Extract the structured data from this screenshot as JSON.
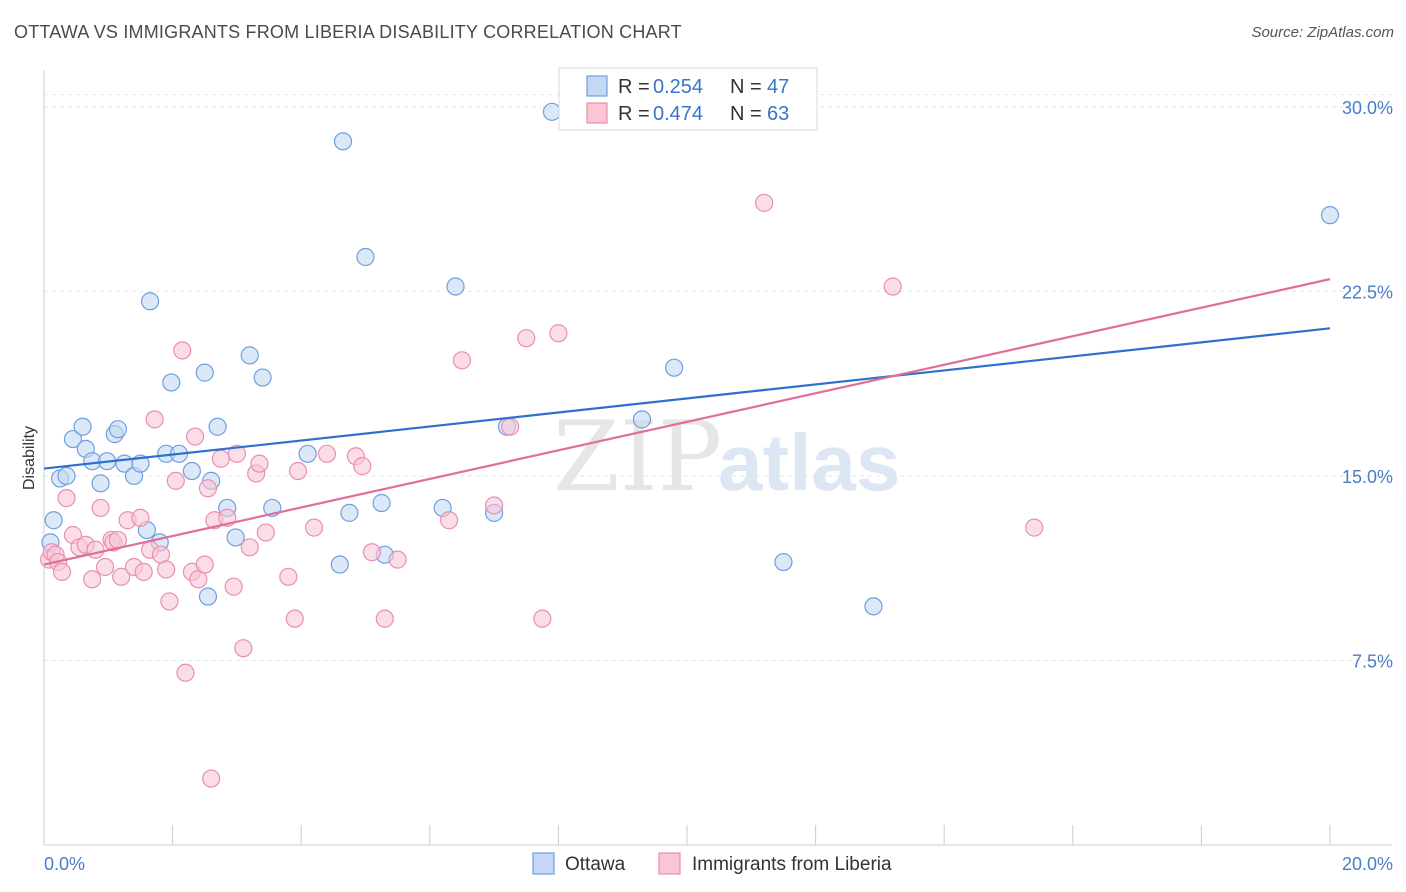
{
  "header": {
    "title": "OTTAWA VS IMMIGRANTS FROM LIBERIA DISABILITY CORRELATION CHART",
    "source": "Source: ZipAtlas.com"
  },
  "watermark": {
    "zip": "ZIP",
    "atlas": "atlas"
  },
  "legend": {
    "r_label": "R = ",
    "n_label": "N = ",
    "entries": [
      {
        "r": "0.254",
        "n": "47"
      },
      {
        "r": "0.474",
        "n": "63"
      }
    ]
  },
  "chart_data": {
    "type": "scatter",
    "title": "OTTAWA VS IMMIGRANTS FROM LIBERIA DISABILITY CORRELATION CHART",
    "xlabel": "",
    "ylabel": "Disability",
    "xlim": [
      0,
      20
    ],
    "ylim": [
      0,
      31.5
    ],
    "x_tick_labels": [
      "0.0%",
      "20.0%"
    ],
    "y_ticks": [
      7.5,
      15.0,
      22.5,
      30.0
    ],
    "y_tick_labels": [
      "7.5%",
      "15.0%",
      "22.5%",
      "30.0%"
    ],
    "grid": true,
    "legend_position": "top-center",
    "series": [
      {
        "name": "Ottawa",
        "color": "#6f9fdf",
        "fill": "#c3d8f4",
        "line_color": "#2f6fcf",
        "trend": [
          [
            0,
            15.3
          ],
          [
            20,
            21.0
          ]
        ],
        "points": [
          [
            0.1,
            12.3
          ],
          [
            0.15,
            13.2
          ],
          [
            0.25,
            14.9
          ],
          [
            0.35,
            15.0
          ],
          [
            0.45,
            16.5
          ],
          [
            0.6,
            17.0
          ],
          [
            0.65,
            16.1
          ],
          [
            0.75,
            15.6
          ],
          [
            0.88,
            14.7
          ],
          [
            0.98,
            15.6
          ],
          [
            1.1,
            16.7
          ],
          [
            1.15,
            16.9
          ],
          [
            1.25,
            15.5
          ],
          [
            1.4,
            15.0
          ],
          [
            1.5,
            15.5
          ],
          [
            1.6,
            12.8
          ],
          [
            1.65,
            22.1
          ],
          [
            1.8,
            12.3
          ],
          [
            1.9,
            15.9
          ],
          [
            1.98,
            18.8
          ],
          [
            2.1,
            15.9
          ],
          [
            2.3,
            15.2
          ],
          [
            2.5,
            19.2
          ],
          [
            2.55,
            10.1
          ],
          [
            2.6,
            14.8
          ],
          [
            2.7,
            17.0
          ],
          [
            2.85,
            13.7
          ],
          [
            2.98,
            12.5
          ],
          [
            3.2,
            19.9
          ],
          [
            3.4,
            19.0
          ],
          [
            3.55,
            13.7
          ],
          [
            4.1,
            15.9
          ],
          [
            4.6,
            11.4
          ],
          [
            4.65,
            28.6
          ],
          [
            4.75,
            13.5
          ],
          [
            5.0,
            23.9
          ],
          [
            5.25,
            13.9
          ],
          [
            5.3,
            11.8
          ],
          [
            6.2,
            13.7
          ],
          [
            6.4,
            22.7
          ],
          [
            7.0,
            13.5
          ],
          [
            7.2,
            17.0
          ],
          [
            7.9,
            29.8
          ],
          [
            9.3,
            17.3
          ],
          [
            9.8,
            19.4
          ],
          [
            11.5,
            11.5
          ],
          [
            12.9,
            9.7
          ],
          [
            20.0,
            25.6
          ]
        ]
      },
      {
        "name": "Immigrants from Liberia",
        "color": "#e98fb0",
        "fill": "#f8c6d7",
        "line_color": "#e06d9a",
        "trend": [
          [
            0,
            11.4
          ],
          [
            20,
            23.0
          ]
        ],
        "points": [
          [
            0.08,
            11.6
          ],
          [
            0.12,
            11.9
          ],
          [
            0.18,
            11.8
          ],
          [
            0.22,
            11.5
          ],
          [
            0.28,
            11.1
          ],
          [
            0.35,
            14.1
          ],
          [
            0.45,
            12.6
          ],
          [
            0.55,
            12.1
          ],
          [
            0.65,
            12.2
          ],
          [
            0.75,
            10.8
          ],
          [
            0.8,
            12.0
          ],
          [
            0.88,
            13.7
          ],
          [
            0.95,
            11.3
          ],
          [
            1.05,
            12.4
          ],
          [
            1.08,
            12.3
          ],
          [
            1.15,
            12.4
          ],
          [
            1.2,
            10.9
          ],
          [
            1.3,
            13.2
          ],
          [
            1.4,
            11.3
          ],
          [
            1.5,
            13.3
          ],
          [
            1.55,
            11.1
          ],
          [
            1.65,
            12.0
          ],
          [
            1.72,
            17.3
          ],
          [
            1.82,
            11.8
          ],
          [
            1.9,
            11.2
          ],
          [
            1.95,
            9.9
          ],
          [
            2.05,
            14.8
          ],
          [
            2.15,
            20.1
          ],
          [
            2.2,
            7.0
          ],
          [
            2.3,
            11.1
          ],
          [
            2.35,
            16.6
          ],
          [
            2.4,
            10.8
          ],
          [
            2.5,
            11.4
          ],
          [
            2.55,
            14.5
          ],
          [
            2.6,
            2.7
          ],
          [
            2.65,
            13.2
          ],
          [
            2.75,
            15.7
          ],
          [
            2.85,
            13.3
          ],
          [
            2.95,
            10.5
          ],
          [
            3.0,
            15.9
          ],
          [
            3.1,
            8.0
          ],
          [
            3.2,
            12.1
          ],
          [
            3.3,
            15.1
          ],
          [
            3.35,
            15.5
          ],
          [
            3.45,
            12.7
          ],
          [
            3.8,
            10.9
          ],
          [
            3.9,
            9.2
          ],
          [
            3.95,
            15.2
          ],
          [
            4.2,
            12.9
          ],
          [
            4.4,
            15.9
          ],
          [
            4.85,
            15.8
          ],
          [
            4.95,
            15.4
          ],
          [
            5.1,
            11.9
          ],
          [
            5.3,
            9.2
          ],
          [
            5.5,
            11.6
          ],
          [
            6.3,
            13.2
          ],
          [
            6.5,
            19.7
          ],
          [
            7.0,
            13.8
          ],
          [
            7.25,
            17.0
          ],
          [
            7.5,
            20.6
          ],
          [
            7.75,
            9.2
          ],
          [
            8.0,
            20.8
          ],
          [
            11.2,
            26.1
          ],
          [
            13.2,
            22.7
          ],
          [
            15.4,
            12.9
          ]
        ]
      }
    ]
  }
}
